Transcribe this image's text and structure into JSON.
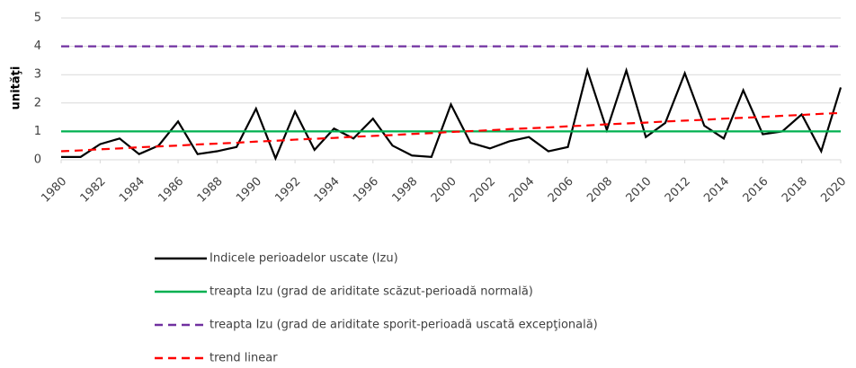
{
  "chart_data": {
    "type": "line",
    "y_label": "unităţi",
    "x": [
      1980,
      1981,
      1982,
      1983,
      1984,
      1985,
      1986,
      1987,
      1988,
      1989,
      1990,
      1991,
      1992,
      1993,
      1994,
      1995,
      1996,
      1997,
      1998,
      1999,
      2000,
      2001,
      2002,
      2003,
      2004,
      2005,
      2006,
      2007,
      2008,
      2009,
      2010,
      2011,
      2012,
      2013,
      2014,
      2015,
      2016,
      2017,
      2018,
      2019,
      2020
    ],
    "xlim": [
      1980,
      2020
    ],
    "xticks": [
      1980,
      1982,
      1984,
      1986,
      1988,
      1990,
      1992,
      1994,
      1996,
      1998,
      2000,
      2002,
      2004,
      2006,
      2008,
      2010,
      2012,
      2014,
      2016,
      2018,
      2020
    ],
    "ylim": [
      0,
      5
    ],
    "yticks": [
      0,
      1,
      2,
      3,
      4,
      5
    ],
    "grid": true,
    "series": [
      {
        "name": "Indicele perioadelor uscate (Izu)",
        "color": "#000000",
        "dashed": false,
        "values": [
          0.1,
          0.1,
          0.55,
          0.75,
          0.2,
          0.5,
          1.35,
          0.2,
          0.3,
          0.45,
          1.8,
          0.05,
          1.7,
          0.35,
          1.1,
          0.75,
          1.45,
          0.5,
          0.15,
          0.1,
          1.95,
          0.6,
          0.4,
          0.65,
          0.8,
          0.3,
          0.45,
          3.15,
          1.05,
          3.15,
          0.8,
          1.3,
          3.05,
          1.2,
          0.75,
          2.45,
          0.9,
          1.0,
          1.6,
          0.3,
          2.55
        ]
      },
      {
        "name": "treapta Izu (grad de ariditate scăzut-perioadă normală)",
        "color": "#00b050",
        "dashed": false,
        "values": [
          1,
          1,
          1,
          1,
          1,
          1,
          1,
          1,
          1,
          1,
          1,
          1,
          1,
          1,
          1,
          1,
          1,
          1,
          1,
          1,
          1,
          1,
          1,
          1,
          1,
          1,
          1,
          1,
          1,
          1,
          1,
          1,
          1,
          1,
          1,
          1,
          1,
          1,
          1,
          1,
          1
        ]
      },
      {
        "name": "treapta Izu (grad de ariditate sporit-perioadă uscată excepţională)",
        "color": "#7030a0",
        "dashed": true,
        "values": [
          4,
          4,
          4,
          4,
          4,
          4,
          4,
          4,
          4,
          4,
          4,
          4,
          4,
          4,
          4,
          4,
          4,
          4,
          4,
          4,
          4,
          4,
          4,
          4,
          4,
          4,
          4,
          4,
          4,
          4,
          4,
          4,
          4,
          4,
          4,
          4,
          4,
          4,
          4,
          4,
          4
        ]
      },
      {
        "name": "trend linear",
        "color": "#ff0000",
        "dashed": true,
        "values": [
          0.3,
          0.33,
          0.37,
          0.4,
          0.44,
          0.47,
          0.5,
          0.54,
          0.57,
          0.6,
          0.64,
          0.67,
          0.71,
          0.74,
          0.77,
          0.81,
          0.84,
          0.87,
          0.91,
          0.94,
          0.98,
          1.01,
          1.04,
          1.08,
          1.11,
          1.14,
          1.18,
          1.21,
          1.25,
          1.28,
          1.31,
          1.35,
          1.38,
          1.41,
          1.45,
          1.48,
          1.51,
          1.55,
          1.58,
          1.62,
          1.65
        ]
      }
    ]
  }
}
